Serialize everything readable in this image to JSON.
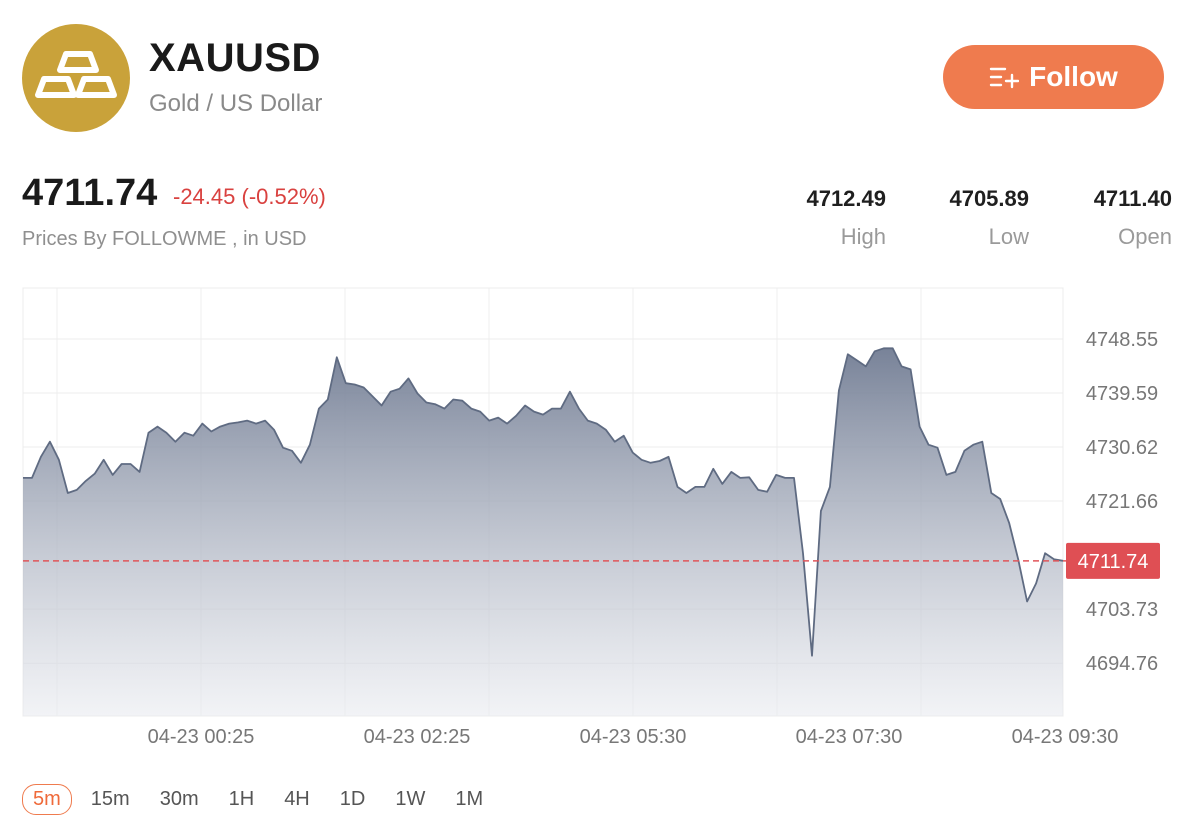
{
  "header": {
    "symbol": "XAUUSD",
    "name": "Gold / US Dollar",
    "follow_label": "Follow"
  },
  "quote": {
    "price": "4711.74",
    "change": "-24.45 (-0.52%)",
    "source": "Prices By FOLLOWME , in USD",
    "stats": [
      {
        "value": "4712.49",
        "label": "High"
      },
      {
        "value": "4705.89",
        "label": "Low"
      },
      {
        "value": "4711.40",
        "label": "Open"
      }
    ]
  },
  "colors": {
    "accent": "#ef7b4e",
    "negative": "#d9413f",
    "logo": "#c9a23a",
    "line": "#5f6b82"
  },
  "intervals": [
    "5m",
    "15m",
    "30m",
    "1H",
    "4H",
    "1D",
    "1W",
    "1M"
  ],
  "active_interval": "5m",
  "chart_data": {
    "type": "area",
    "title": "",
    "xlabel": "",
    "ylabel": "",
    "ylim": [
      4686.0,
      4757.0
    ],
    "y_ticks": [
      4748.55,
      4739.59,
      4730.62,
      4721.66,
      4703.73,
      4694.76
    ],
    "x_ticks": [
      "04-23 00:25",
      "04-23 02:25",
      "04-23 05:30",
      "04-23 07:30",
      "04-23 09:30"
    ],
    "current_value": 4711.74,
    "current_label": "4711.74",
    "grid": true,
    "values": [
      4725.5,
      4725.5,
      4729.0,
      4731.5,
      4728.5,
      4723.0,
      4723.5,
      4725.0,
      4726.2,
      4728.5,
      4726.0,
      4727.8,
      4727.8,
      4726.5,
      4733.0,
      4734.0,
      4733.0,
      4731.5,
      4733.0,
      4732.5,
      4734.5,
      4733.2,
      4734.0,
      4734.5,
      4734.7,
      4735.0,
      4734.5,
      4735.0,
      4733.5,
      4730.5,
      4730.0,
      4728.0,
      4731.0,
      4737.0,
      4738.5,
      4745.5,
      4741.2,
      4741.0,
      4740.5,
      4739.0,
      4737.5,
      4739.8,
      4740.3,
      4742.0,
      4739.5,
      4738.0,
      4737.7,
      4737.0,
      4738.5,
      4738.3,
      4737.0,
      4736.5,
      4735.0,
      4735.5,
      4734.5,
      4735.8,
      4737.5,
      4736.5,
      4736.0,
      4737.0,
      4737.0,
      4739.8,
      4737.0,
      4735.0,
      4734.5,
      4733.5,
      4731.5,
      4732.5,
      4729.7,
      4728.5,
      4728.0,
      4728.3,
      4729.0,
      4724.0,
      4723.0,
      4724.0,
      4724.0,
      4727.0,
      4724.5,
      4726.5,
      4725.5,
      4725.6,
      4723.5,
      4723.2,
      4726.0,
      4725.5,
      4725.5,
      4713.0,
      4696.0,
      4720.0,
      4724.0,
      4740.0,
      4746.0,
      4745.0,
      4744.0,
      4746.5,
      4747.0,
      4747.0,
      4744.0,
      4743.5,
      4734.0,
      4731.0,
      4730.5,
      4726.0,
      4726.5,
      4730.0,
      4731.0,
      4731.5,
      4723.0,
      4722.0,
      4718.0,
      4712.0,
      4705.0,
      4708.0,
      4713.0,
      4712.0,
      4711.74
    ]
  }
}
